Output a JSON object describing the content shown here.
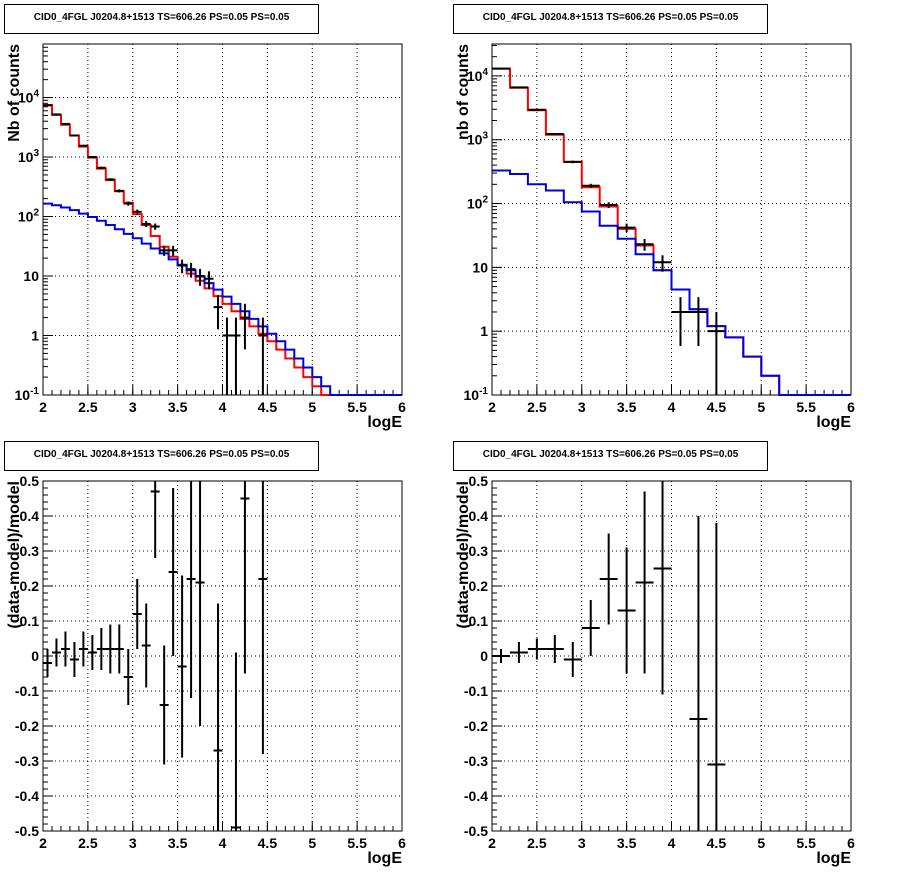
{
  "chart_data": [
    {
      "type": "histogram",
      "title": "CID0_4FGL J0204.8+1513 TS=606.26 PS=0.05 PS=0.05",
      "xlabel": "logE",
      "ylabel": "Nb of counts",
      "log_y": true,
      "xlim": [
        2,
        6
      ],
      "ylim": [
        0.1,
        80000
      ],
      "xticks": [
        "2",
        "2.5",
        "3",
        "3.5",
        "4",
        "4.5",
        "5",
        "5.5",
        "6"
      ],
      "yticks": [
        "10^{-1}",
        "1",
        "10",
        "10^{2}",
        "10^{3}",
        "10^{4}"
      ],
      "grid": true,
      "bin_width": 0.1,
      "series": [
        {
          "color": "#ff0000",
          "bins_start": 2.0,
          "values": [
            7500,
            5100,
            3500,
            2300,
            1500,
            980,
            640,
            410,
            265,
            170,
            110,
            72,
            47,
            31,
            21,
            15,
            11,
            8.3,
            6.2,
            4.6,
            3.4,
            2.55,
            1.9,
            1.42,
            1.07,
            0.8,
            0.58,
            0.41,
            0.29,
            0.2,
            0.14,
            0.1,
            0.1,
            0.1,
            0.1,
            0.1,
            0.1,
            0.1,
            0.1,
            0.1
          ]
        },
        {
          "color": "#0000dd",
          "bins_start": 2.0,
          "values": [
            165,
            155,
            142,
            128,
            112,
            98,
            85,
            72,
            61,
            51,
            43,
            35,
            29,
            24,
            19,
            15.5,
            12.5,
            9.8,
            7.6,
            5.9,
            4.5,
            3.4,
            2.55,
            1.9,
            1.42,
            1.07,
            0.8,
            0.58,
            0.41,
            0.29,
            0.2,
            0.14,
            0.1,
            0.1,
            0.1,
            0.1,
            0.1,
            0.1,
            0.1,
            0.1
          ]
        }
      ],
      "points": {
        "x": [
          2.05,
          2.15,
          2.25,
          2.35,
          2.45,
          2.55,
          2.65,
          2.75,
          2.85,
          2.95,
          3.05,
          3.15,
          3.25,
          3.35,
          3.45,
          3.55,
          3.65,
          3.75,
          3.85,
          3.95,
          4.05,
          4.15,
          4.25,
          4.45
        ],
        "y": [
          7400,
          5200,
          3600,
          2300,
          1550,
          1000,
          660,
          420,
          270,
          165,
          120,
          75,
          68,
          27,
          27,
          15,
          13,
          10,
          9,
          3,
          1,
          1,
          2,
          1
        ],
        "xerr": 0.05
      }
    },
    {
      "type": "histogram",
      "title": "CID0_4FGL J0204.8+1513 TS=606.26 PS=0.05 PS=0.05",
      "xlabel": "logE",
      "ylabel": "nb of counts",
      "log_y": true,
      "xlim": [
        2,
        6
      ],
      "ylim": [
        0.1,
        30000
      ],
      "xticks": [
        "2",
        "2.5",
        "3",
        "3.5",
        "4",
        "4.5",
        "5",
        "5.5",
        "6"
      ],
      "yticks": [
        "10^{-1}",
        "1",
        "10",
        "10^{2}",
        "10^{3}",
        "10^{4}"
      ],
      "grid": true,
      "bin_width": 0.2,
      "series": [
        {
          "color": "#ff0000",
          "bins_start": 2.0,
          "values": [
            13000,
            6500,
            2900,
            1200,
            450,
            180,
            90,
            40,
            22,
            9,
            4.5,
            2.2,
            1.2,
            0.8,
            0.4,
            0.2,
            0.1,
            0.1,
            0.1,
            0.1
          ]
        },
        {
          "color": "#0000dd",
          "bins_start": 2.0,
          "values": [
            330,
            290,
            200,
            160,
            105,
            75,
            45,
            28,
            16,
            9,
            4.5,
            2.2,
            1.2,
            0.8,
            0.4,
            0.2,
            0.1,
            0.1,
            0.1,
            0.1
          ]
        }
      ],
      "points": {
        "x": [
          2.1,
          2.3,
          2.5,
          2.7,
          2.9,
          3.1,
          3.3,
          3.5,
          3.7,
          3.9,
          4.1,
          4.3,
          4.5
        ],
        "y": [
          13000,
          6600,
          2950,
          1230,
          450,
          190,
          95,
          42,
          23,
          12,
          2,
          2,
          1
        ],
        "xerr": 0.1
      }
    },
    {
      "type": "scatter",
      "title": "CID0_4FGL J0204.8+1513 TS=606.26 PS=0.05 PS=0.05",
      "xlabel": "logE",
      "ylabel": "(data-model)/model",
      "xlim": [
        2,
        6
      ],
      "ylim": [
        -0.5,
        0.5
      ],
      "xticks": [
        "2",
        "2.5",
        "3",
        "3.5",
        "4",
        "4.5",
        "5",
        "5.5",
        "6"
      ],
      "yticks": [
        "-0.5",
        "-0.4",
        "-0.3",
        "-0.2",
        "-0.1",
        "0",
        "0.1",
        "0.2",
        "0.3",
        "0.4",
        "0.5"
      ],
      "grid": true,
      "points": {
        "x": [
          2.05,
          2.15,
          2.25,
          2.35,
          2.45,
          2.55,
          2.65,
          2.75,
          2.85,
          2.95,
          3.05,
          3.15,
          3.25,
          3.35,
          3.45,
          3.55,
          3.65,
          3.75,
          3.95,
          4.15,
          4.25,
          4.45
        ],
        "y": [
          -0.02,
          0.01,
          0.02,
          -0.01,
          0.02,
          0.01,
          0.02,
          0.02,
          0.02,
          -0.06,
          0.12,
          0.03,
          0.47,
          -0.14,
          0.24,
          -0.03,
          0.22,
          0.21,
          -0.27,
          -0.49,
          0.45,
          0.22
        ],
        "yerr": [
          0.04,
          0.04,
          0.05,
          0.05,
          0.05,
          0.05,
          0.06,
          0.07,
          0.07,
          0.08,
          0.1,
          0.12,
          0.19,
          0.17,
          0.24,
          0.26,
          0.34,
          0.41,
          0.42,
          0.5,
          0.5,
          0.5
        ],
        "xerr": 0.05
      }
    },
    {
      "type": "scatter",
      "title": "CID0_4FGL J0204.8+1513 TS=606.26 PS=0.05 PS=0.05",
      "xlabel": "logE",
      "ylabel": "(data-model)/model",
      "xlim": [
        2,
        6
      ],
      "ylim": [
        -0.5,
        0.5
      ],
      "xticks": [
        "2",
        "2.5",
        "3",
        "3.5",
        "4",
        "4.5",
        "5",
        "5.5",
        "6"
      ],
      "yticks": [
        "-0.5",
        "-0.4",
        "-0.3",
        "-0.2",
        "-0.1",
        "0",
        "0.1",
        "0.2",
        "0.3",
        "0.4",
        "0.5"
      ],
      "grid": true,
      "points": {
        "x": [
          2.1,
          2.3,
          2.5,
          2.7,
          2.9,
          3.1,
          3.3,
          3.5,
          3.7,
          3.9,
          4.3,
          4.5
        ],
        "y": [
          0.0,
          0.01,
          0.02,
          0.02,
          -0.01,
          0.08,
          0.22,
          0.13,
          0.21,
          0.25,
          -0.18,
          -0.31
        ],
        "yerr": [
          0.02,
          0.03,
          0.03,
          0.04,
          0.05,
          0.08,
          0.13,
          0.18,
          0.26,
          0.36,
          0.58,
          0.69
        ],
        "xerr": 0.1
      }
    }
  ]
}
